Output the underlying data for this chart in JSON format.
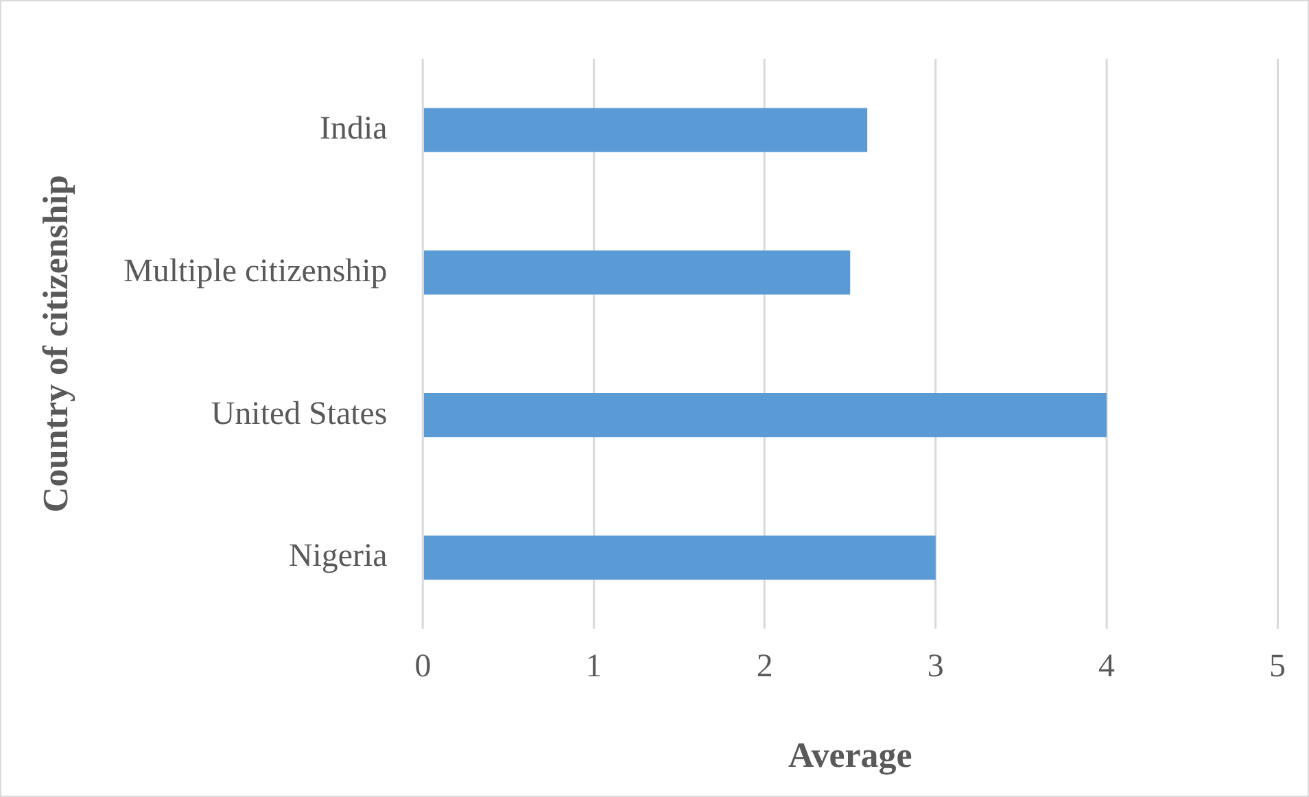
{
  "chart_data": {
    "type": "bar",
    "orientation": "horizontal",
    "xlabel": "Average",
    "ylabel": "Country of citizenship",
    "categories": [
      "India",
      "Multiple citizenship",
      "United States",
      "Nigeria"
    ],
    "values": [
      2.6,
      2.5,
      4,
      3
    ],
    "color": "#5b9bd5",
    "xlim": [
      0,
      5
    ],
    "xticks": [
      0,
      1,
      2,
      3,
      4,
      5
    ],
    "grid": "x",
    "legend": false
  }
}
